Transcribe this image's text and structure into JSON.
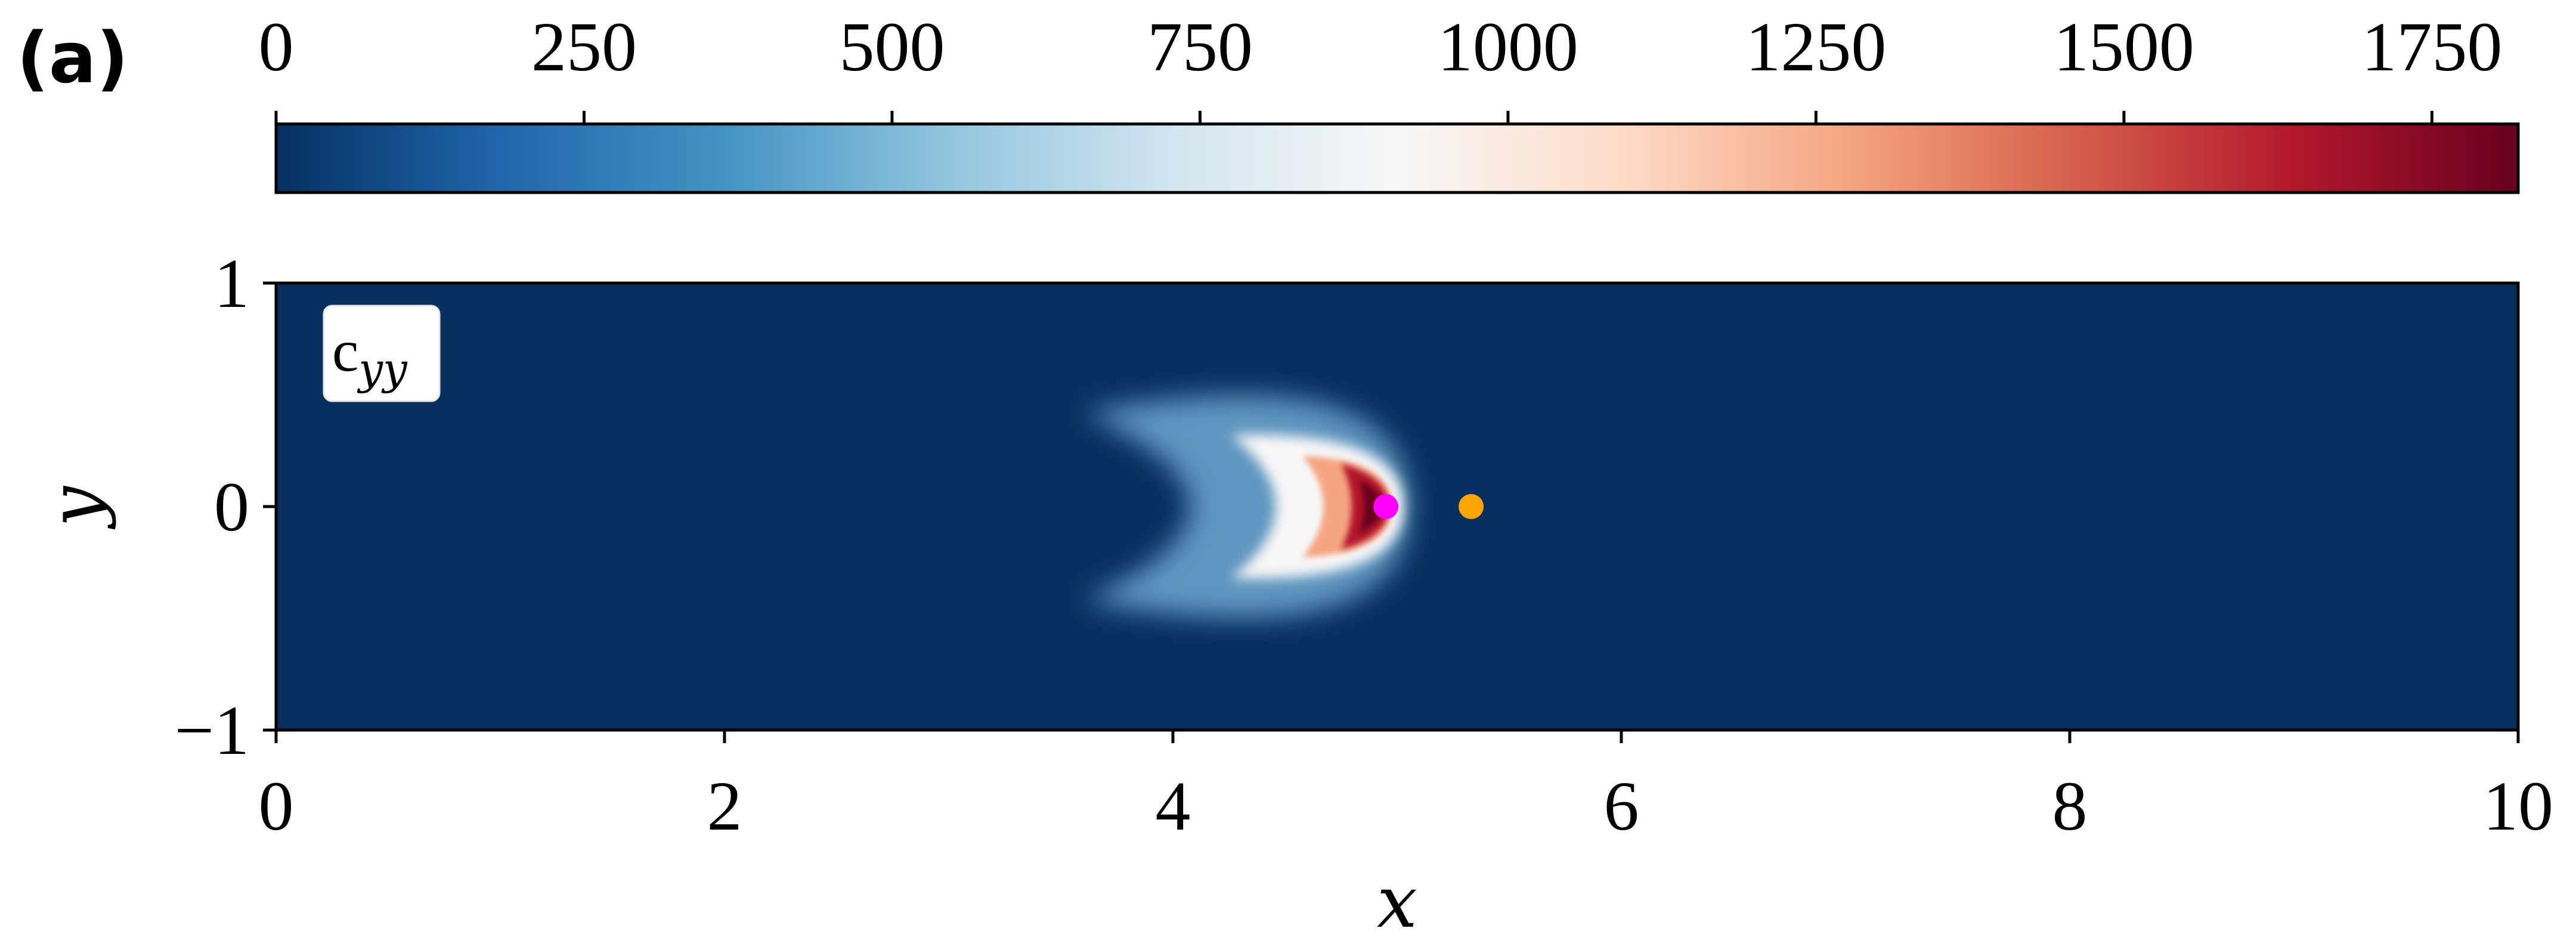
{
  "panel_label": "(a)",
  "field_label": {
    "base": "c",
    "subscript": "yy"
  },
  "colors": {
    "background_field": "#08305e",
    "colormap": [
      "#053061",
      "#2166ac",
      "#4393c3",
      "#92c5de",
      "#d1e5f0",
      "#f7f7f7",
      "#fddbc7",
      "#f4a582",
      "#d6604d",
      "#b2182b",
      "#67001f"
    ],
    "marker_magenta": "#ff00ff",
    "marker_orange": "#ffa500"
  },
  "chart_data": [
    {
      "type": "colorbar",
      "orientation": "horizontal",
      "placement": "top",
      "range": [
        0,
        1820
      ],
      "ticks": [
        0,
        250,
        500,
        750,
        1000,
        1250,
        1500,
        1750
      ],
      "tick_labels": [
        "0",
        "250",
        "500",
        "750",
        "1000",
        "1250",
        "1500",
        "1750"
      ],
      "colormap": "RdBu_r"
    },
    {
      "type": "heatmap",
      "xlabel": "x",
      "ylabel": "y",
      "xlim": [
        0,
        10
      ],
      "ylim": [
        -1,
        1
      ],
      "xticks": [
        0,
        2,
        4,
        6,
        8,
        10
      ],
      "xtick_labels": [
        "0",
        "2",
        "4",
        "6",
        "8",
        "10"
      ],
      "yticks": [
        -1,
        0,
        1
      ],
      "ytick_labels": [
        "−1",
        "0",
        "1"
      ],
      "feature": {
        "shape": "crescent",
        "apex_x": 4.95,
        "apex_y": 0.0,
        "tail_x": 3.6,
        "tail_y_extent": [
          -0.42,
          0.42
        ],
        "peak_value": 1820,
        "background_value": 0
      },
      "markers": [
        {
          "name": "magenta point",
          "x": 4.95,
          "y": 0.0,
          "color": "#ff00ff"
        },
        {
          "name": "orange point",
          "x": 5.33,
          "y": 0.0,
          "color": "#ffa500"
        }
      ]
    }
  ]
}
